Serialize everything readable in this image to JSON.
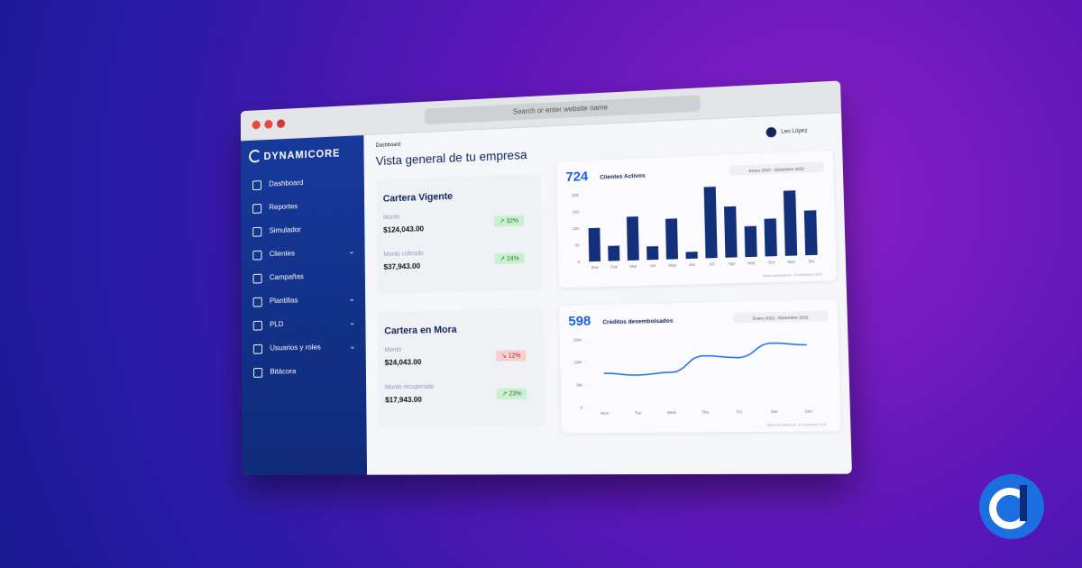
{
  "browser": {
    "address_placeholder": "Search or enter website name"
  },
  "sidebar": {
    "brand": "DYNAMICORE",
    "nav": [
      {
        "label": "Dashboard",
        "expandable": false
      },
      {
        "label": "Reportes",
        "expandable": false
      },
      {
        "label": "Simulador",
        "expandable": false
      },
      {
        "label": "Clientes",
        "expandable": true
      },
      {
        "label": "Campañas",
        "expandable": false
      },
      {
        "label": "Plantillas",
        "expandable": true
      },
      {
        "label": "PLD",
        "expandable": true
      },
      {
        "label": "Usuarios y roles",
        "expandable": true
      },
      {
        "label": "Bitácora",
        "expandable": false
      }
    ]
  },
  "header": {
    "breadcrumb": "Dashboard",
    "title": "Vista general de tu empresa",
    "user": "Leo López"
  },
  "cards": [
    {
      "title": "Cartera Vigente",
      "items": [
        {
          "label": "Monto",
          "amount": "$124,043.00",
          "change": "32%",
          "trend": "up"
        },
        {
          "label": "Monto cobrado",
          "amount": "$37,943.00",
          "change": "24%",
          "trend": "up"
        }
      ]
    },
    {
      "title": "Cartera en Mora",
      "items": [
        {
          "label": "Monto",
          "amount": "$24,043.00",
          "change": "12%",
          "trend": "down"
        },
        {
          "label": "Monto recuperado",
          "amount": "$17,943.00",
          "change": "23%",
          "trend": "up"
        }
      ]
    }
  ],
  "chart_data": [
    {
      "type": "bar",
      "total": 724,
      "title": "Clientes Activos",
      "date_range": "Enero 2022 - Diciembre 2022",
      "footnote": "Última actualización: 24 noviembre 2022",
      "categories": [
        "Ene",
        "Feb",
        "Mar",
        "Abr",
        "May",
        "Jun",
        "Jul",
        "Ago",
        "Sep",
        "Oct",
        "Nov",
        "Dic"
      ],
      "values": [
        100,
        45,
        130,
        40,
        120,
        20,
        210,
        150,
        90,
        110,
        190,
        130
      ],
      "color": "#13307a",
      "ylim": [
        0,
        200
      ],
      "yticks": [
        0,
        50,
        100,
        150,
        200
      ]
    },
    {
      "type": "line",
      "total": 598,
      "title": "Créditos desembolsados",
      "date_range": "Enero 2022 - Diciembre 2022",
      "footnote": "Última actualización: 24 noviembre 2022",
      "categories": [
        "Mon",
        "Tue",
        "Wed",
        "Thu",
        "Fri",
        "Sat",
        "Sun"
      ],
      "values": [
        7500000,
        7000000,
        7500000,
        11000000,
        10500000,
        13500000,
        13000000
      ],
      "color": "#1a73e8",
      "ylim": [
        0,
        15000000
      ],
      "yticks": [
        0,
        {
          "value": 5000000,
          "label": "5M"
        },
        {
          "value": 10000000,
          "label": "10M"
        },
        {
          "value": 15000000,
          "label": "15M"
        }
      ]
    }
  ]
}
